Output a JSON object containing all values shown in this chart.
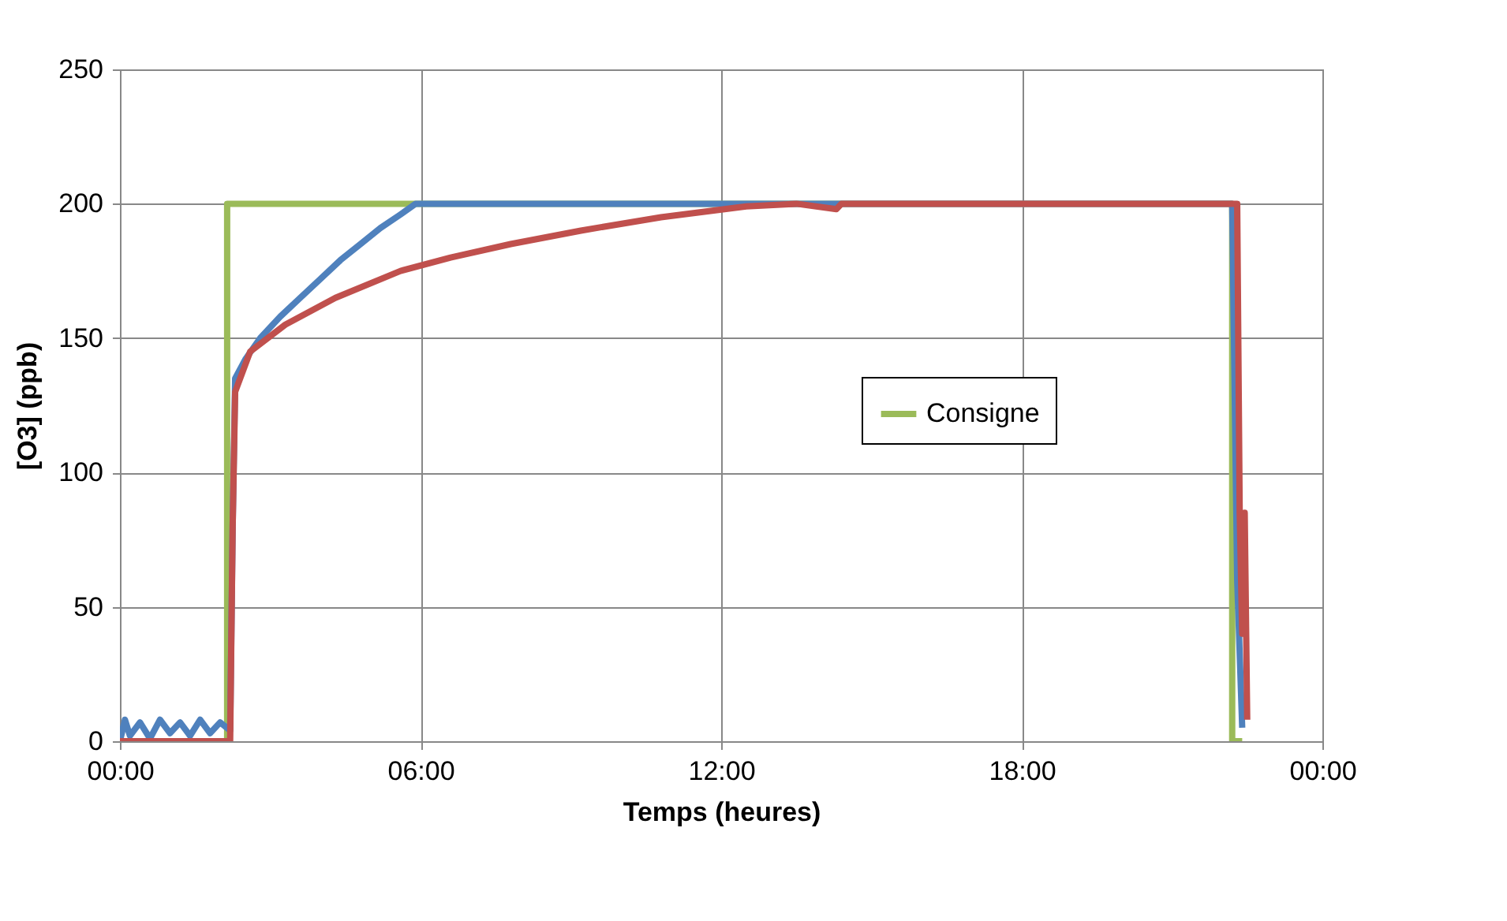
{
  "chart_data": {
    "type": "line",
    "xlabel": "Temps (heures)",
    "ylabel": "[O3] (ppb)",
    "xlim": [
      0,
      24
    ],
    "xticks": [
      {
        "value": 0,
        "label": "00:00"
      },
      {
        "value": 6,
        "label": "06:00"
      },
      {
        "value": 12,
        "label": "12:00"
      },
      {
        "value": 18,
        "label": "18:00"
      },
      {
        "value": 24,
        "label": "00:00"
      }
    ],
    "ylim": [
      0,
      250
    ],
    "yticks": [
      0,
      50,
      100,
      150,
      200,
      250
    ],
    "grid": true,
    "legend": "right",
    "marker": "none",
    "line_style": "solid",
    "series": [
      {
        "name": "Consigne",
        "color": "#9bbb59",
        "x": [
          0,
          2.14,
          2.14,
          22.2,
          22.2,
          22.4
        ],
        "values": [
          0,
          0,
          200,
          200,
          0,
          0
        ]
      },
      {
        "color": "#4f81bd",
        "x": [
          0,
          0.1,
          0.2,
          0.4,
          0.6,
          0.8,
          1.0,
          1.2,
          1.4,
          1.6,
          1.8,
          2.0,
          2.2,
          2.25,
          2.3,
          2.5,
          2.8,
          3.2,
          3.6,
          4.0,
          4.4,
          4.8,
          5.2,
          5.6,
          5.9,
          10,
          15,
          20,
          22.2,
          22.3,
          22.4
        ],
        "values": [
          0,
          8,
          2,
          7,
          1,
          8,
          3,
          7,
          2,
          8,
          3,
          7,
          4,
          80,
          135,
          142,
          150,
          158,
          165,
          172,
          179,
          185,
          191,
          196,
          200,
          200,
          200,
          200,
          200,
          60,
          5
        ]
      },
      {
        "color": "#c0504d",
        "x": [
          0,
          2.2,
          2.25,
          2.3,
          2.6,
          3.3,
          4.3,
          5.6,
          6.6,
          7.8,
          9.2,
          10.8,
          12.5,
          13.5,
          14.3,
          14.4,
          14.5,
          18,
          22.3,
          22.35,
          22.4,
          22.45,
          22.5
        ],
        "values": [
          0,
          0,
          80,
          130,
          145,
          155,
          165,
          175,
          180,
          185,
          190,
          195,
          199,
          200,
          198,
          200,
          200,
          200,
          200,
          85,
          40,
          85,
          8
        ]
      }
    ]
  }
}
